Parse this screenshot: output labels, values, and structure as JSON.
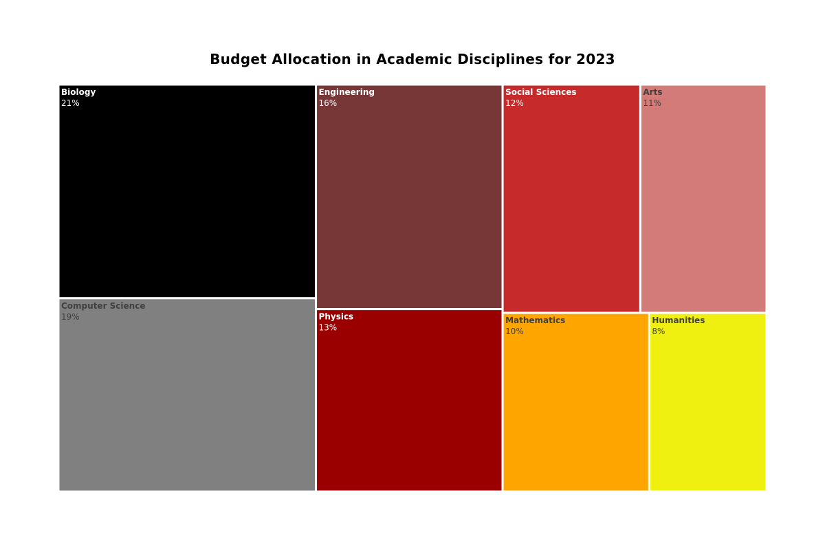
{
  "chart_data": {
    "type": "treemap",
    "title": "Budget Allocation in Academic Disciplines for 2023",
    "unit": "%",
    "items": [
      {
        "label": "Biology",
        "value": 21,
        "display": "21%",
        "color": "#000000",
        "text_color": "#ffffff"
      },
      {
        "label": "Computer Science",
        "value": 19,
        "display": "19%",
        "color": "#808080",
        "text_color": "#404040"
      },
      {
        "label": "Engineering",
        "value": 16,
        "display": "16%",
        "color": "#773737",
        "text_color": "#ffffff"
      },
      {
        "label": "Physics",
        "value": 13,
        "display": "13%",
        "color": "#9b0000",
        "text_color": "#ffffff"
      },
      {
        "label": "Social Sciences",
        "value": 12,
        "display": "12%",
        "color": "#c62a2a",
        "text_color": "#ffffff"
      },
      {
        "label": "Arts",
        "value": 11,
        "display": "11%",
        "color": "#d37b78",
        "text_color": "#404040"
      },
      {
        "label": "Mathematics",
        "value": 10,
        "display": "10%",
        "color": "#ffa500",
        "text_color": "#404040"
      },
      {
        "label": "Humanities",
        "value": 8,
        "display": "8%",
        "color": "#f0f010",
        "text_color": "#404040"
      }
    ]
  }
}
